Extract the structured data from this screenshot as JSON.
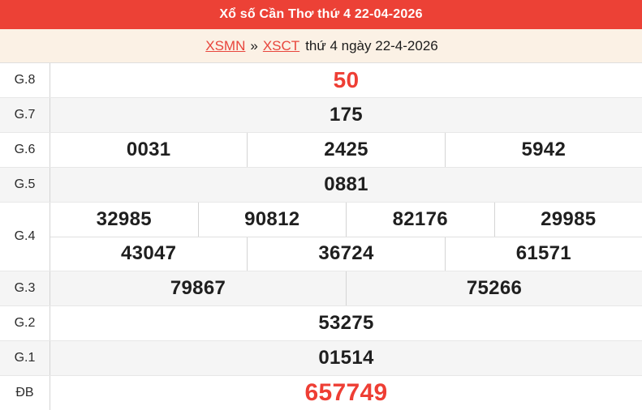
{
  "header": {
    "title": "Xổ số Cần Thơ thứ 4 22-04-2026"
  },
  "breadcrumb": {
    "region_link": "XSMN",
    "separator": "»",
    "province_link": "XSCT",
    "suffix": "thứ 4 ngày 22-4-2026"
  },
  "results": {
    "rows": [
      {
        "label": "G.8",
        "values": [
          "50"
        ],
        "highlight": true
      },
      {
        "label": "G.7",
        "values": [
          "175"
        ]
      },
      {
        "label": "G.6",
        "values": [
          "0031",
          "2425",
          "5942"
        ]
      },
      {
        "label": "G.5",
        "values": [
          "0881"
        ]
      },
      {
        "label": "G.4",
        "lines": [
          [
            "32985",
            "90812",
            "82176",
            "29985"
          ],
          [
            "43047",
            "36724",
            "61571"
          ]
        ]
      },
      {
        "label": "G.3",
        "values": [
          "79867",
          "75266"
        ]
      },
      {
        "label": "G.2",
        "values": [
          "53275"
        ]
      },
      {
        "label": "G.1",
        "values": [
          "01514"
        ]
      },
      {
        "label": "ĐB",
        "values": [
          "657749"
        ],
        "highlight": true
      }
    ]
  },
  "colors": {
    "header_bg": "#ec4136",
    "highlight_text": "#ee3e34",
    "link_text": "#e8453c",
    "breadcrumb_bg": "#fbf1e5",
    "shade_row_bg": "#f5f5f5"
  }
}
